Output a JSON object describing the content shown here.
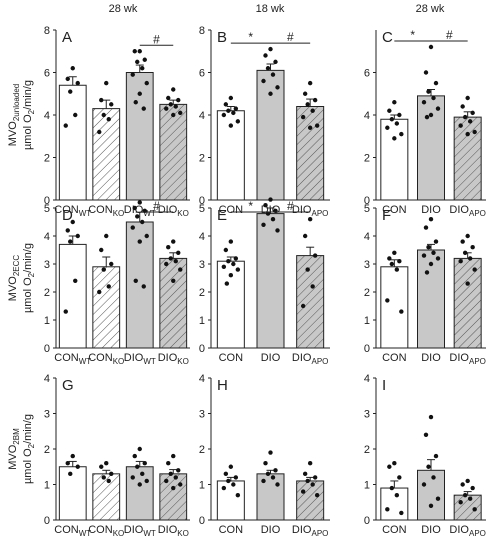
{
  "column_titles": [
    "28 wk",
    "18 wk",
    "28 wk"
  ],
  "chart_data": [
    {
      "type": "bar",
      "letter": "A",
      "categories": [
        "CON",
        "CON",
        "DIO",
        "DIO"
      ],
      "category_subscripts": [
        "WT",
        "KO",
        "WT",
        "KO"
      ],
      "ylabel": [
        {
          "text": "MVO"
        },
        {
          "text": "2unloaded",
          "sub": true
        }
      ],
      "yunit": [
        {
          "text": "µmol O"
        },
        {
          "text": "2",
          "sub": true
        },
        {
          "text": "/min/g"
        }
      ],
      "values": [
        5.4,
        4.3,
        6.0,
        4.5
      ],
      "errors": [
        0.4,
        0.4,
        0.35,
        0.2
      ],
      "colors": [
        "#ffffff",
        "#ffffff",
        "#c8c8c8",
        "#c8c8c8"
      ],
      "hatch": [
        false,
        true,
        false,
        true
      ],
      "points": [
        [
          6.2,
          5.7,
          5.5,
          5.1,
          4.0,
          3.5
        ],
        [
          5.5,
          4.7,
          4.5,
          4.0,
          3.8,
          3.2
        ],
        [
          7.0,
          7.0,
          6.6,
          6.5,
          6.2,
          5.9,
          5.5,
          5.0,
          4.6,
          4.3
        ],
        [
          5.2,
          4.8,
          4.7,
          4.5,
          4.4,
          4.3,
          4.1,
          4.0
        ]
      ],
      "ylim": [
        0,
        8
      ],
      "yticks": [
        0,
        2,
        4,
        6,
        8
      ],
      "annotations": [
        {
          "text": "#",
          "from": 2,
          "to": 3
        }
      ]
    },
    {
      "type": "bar",
      "letter": "B",
      "categories": [
        "CON",
        "DIO",
        "DIO"
      ],
      "category_subscripts": [
        null,
        null,
        "APO"
      ],
      "values": [
        4.2,
        6.1,
        4.4
      ],
      "errors": [
        0.2,
        0.3,
        0.35
      ],
      "colors": [
        "#ffffff",
        "#c8c8c8",
        "#c8c8c8"
      ],
      "hatch": [
        false,
        false,
        true
      ],
      "points": [
        [
          4.8,
          4.5,
          4.3,
          4.2,
          4.1,
          4.0,
          3.7,
          3.5
        ],
        [
          7.1,
          6.8,
          6.5,
          6.2,
          5.9,
          5.6,
          5.3,
          5.0
        ],
        [
          5.5,
          5.0,
          4.7,
          4.5,
          4.2,
          3.9,
          3.5,
          3.4
        ]
      ],
      "ylim": [
        0,
        8
      ],
      "yticks": [
        0,
        2,
        4,
        6,
        8
      ],
      "annotations": [
        {
          "text": "*",
          "from": 0,
          "to": 1
        },
        {
          "text": "#",
          "from": 1,
          "to": 2
        }
      ]
    },
    {
      "type": "bar",
      "letter": "C",
      "categories": [
        "CON",
        "DIO",
        "DIO"
      ],
      "category_subscripts": [
        null,
        null,
        "APO"
      ],
      "values": [
        3.8,
        4.9,
        3.9
      ],
      "errors": [
        0.2,
        0.3,
        0.25
      ],
      "colors": [
        "#ffffff",
        "#c8c8c8",
        "#c8c8c8"
      ],
      "hatch": [
        false,
        false,
        true
      ],
      "points": [
        [
          4.6,
          4.2,
          4.0,
          3.8,
          3.6,
          3.4,
          3.1,
          2.9
        ],
        [
          7.2,
          6.0,
          5.5,
          5.1,
          4.8,
          4.6,
          4.3,
          4.0,
          3.9
        ],
        [
          4.8,
          4.4,
          4.1,
          3.9,
          3.7,
          3.5,
          3.2,
          3.1
        ]
      ],
      "ylim": [
        0,
        8
      ],
      "yticks": [
        0,
        2,
        4,
        6
      ],
      "annotations": [
        {
          "text": "*",
          "from": 0,
          "to": 1
        },
        {
          "text": "#",
          "from": 1,
          "to": 2
        }
      ]
    },
    {
      "type": "bar",
      "letter": "D",
      "categories": [
        "CON",
        "CON",
        "DIO",
        "DIO"
      ],
      "category_subscripts": [
        "WT",
        "KO",
        "WT",
        "KO"
      ],
      "ylabel": [
        {
          "text": "MVO"
        },
        {
          "text": "2ECC",
          "sub": true
        }
      ],
      "yunit": [
        {
          "text": "µmol O"
        },
        {
          "text": "2",
          "sub": true
        },
        {
          "text": "/min/g"
        }
      ],
      "values": [
        3.7,
        2.9,
        4.5,
        3.2
      ],
      "errors": [
        0.3,
        0.35,
        0.35,
        0.2
      ],
      "colors": [
        "#ffffff",
        "#ffffff",
        "#c8c8c8",
        "#c8c8c8"
      ],
      "hatch": [
        false,
        true,
        false,
        true
      ],
      "points": [
        [
          4.5,
          4.2,
          4.0,
          3.8,
          2.4,
          1.3
        ],
        [
          4.0,
          3.5,
          3.0,
          2.8,
          2.2,
          2.0
        ],
        [
          5.2,
          5.0,
          4.9,
          4.7,
          4.5,
          4.3,
          4.0,
          3.8,
          2.4,
          2.2
        ],
        [
          3.8,
          3.6,
          3.4,
          3.2,
          3.1,
          3.0,
          2.8,
          2.4
        ]
      ],
      "ylim": [
        0,
        5
      ],
      "yticks": [
        0,
        1,
        2,
        3,
        4,
        5
      ],
      "annotations": [
        {
          "text": "#",
          "from": 2,
          "to": 3
        }
      ]
    },
    {
      "type": "bar",
      "letter": "E",
      "categories": [
        "CON",
        "DIO",
        "DIO"
      ],
      "category_subscripts": [
        null,
        null,
        "APO"
      ],
      "values": [
        3.1,
        4.8,
        3.3
      ],
      "errors": [
        0.15,
        0.2,
        0.3
      ],
      "colors": [
        "#ffffff",
        "#c8c8c8",
        "#c8c8c8"
      ],
      "hatch": [
        false,
        false,
        true
      ],
      "points": [
        [
          3.8,
          3.5,
          3.2,
          3.1,
          3.0,
          2.9,
          2.8,
          2.6,
          2.3
        ],
        [
          5.3,
          5.1,
          4.9,
          4.8,
          4.6,
          4.4,
          4.2
        ],
        [
          4.6,
          4.0,
          3.3,
          2.8,
          2.2,
          1.5
        ]
      ],
      "ylim": [
        0,
        5
      ],
      "yticks": [
        0,
        1,
        2,
        3,
        4,
        5
      ],
      "annotations": [
        {
          "text": "*",
          "from": 0,
          "to": 1
        },
        {
          "text": "#",
          "from": 1,
          "to": 2
        }
      ]
    },
    {
      "type": "bar",
      "letter": "F",
      "categories": [
        "CON",
        "DIO",
        "DIO"
      ],
      "category_subscripts": [
        null,
        null,
        "APO"
      ],
      "values": [
        2.9,
        3.5,
        3.2
      ],
      "errors": [
        0.25,
        0.2,
        0.2
      ],
      "colors": [
        "#ffffff",
        "#c8c8c8",
        "#c8c8c8"
      ],
      "hatch": [
        false,
        false,
        true
      ],
      "points": [
        [
          3.4,
          3.2,
          3.1,
          3.0,
          2.8,
          1.7,
          1.3
        ],
        [
          4.6,
          4.3,
          3.8,
          3.6,
          3.4,
          3.3,
          3.2,
          3.0,
          2.7
        ],
        [
          4.0,
          3.8,
          3.6,
          3.4,
          3.2,
          3.1,
          2.8,
          2.3
        ]
      ],
      "ylim": [
        0,
        5
      ],
      "yticks": [
        0,
        1,
        2,
        3,
        4,
        5
      ]
    },
    {
      "type": "bar",
      "letter": "G",
      "categories": [
        "CON",
        "CON",
        "DIO",
        "DIO"
      ],
      "category_subscripts": [
        "WT",
        "KO",
        "WT",
        "KO"
      ],
      "ylabel": [
        {
          "text": "MVO"
        },
        {
          "text": "2BM",
          "sub": true
        }
      ],
      "yunit": [
        {
          "text": "µmol O"
        },
        {
          "text": "2",
          "sub": true
        },
        {
          "text": "/min/g"
        }
      ],
      "values": [
        1.5,
        1.3,
        1.5,
        1.3
      ],
      "errors": [
        0.15,
        0.1,
        0.15,
        0.12
      ],
      "colors": [
        "#ffffff",
        "#ffffff",
        "#c8c8c8",
        "#c8c8c8"
      ],
      "hatch": [
        false,
        true,
        false,
        true
      ],
      "points": [
        [
          1.8,
          1.6,
          1.5,
          1.3
        ],
        [
          1.6,
          1.5,
          1.3,
          1.2,
          1.1
        ],
        [
          2.0,
          1.8,
          1.6,
          1.5,
          1.3,
          1.2,
          1.1,
          1.0
        ],
        [
          1.8,
          1.6,
          1.4,
          1.3,
          1.2,
          1.1,
          1.0,
          0.9
        ]
      ],
      "ylim": [
        0,
        4
      ],
      "yticks": [
        0,
        1,
        2,
        3,
        4
      ]
    },
    {
      "type": "bar",
      "letter": "H",
      "categories": [
        "CON",
        "DIO",
        "DIO"
      ],
      "category_subscripts": [
        null,
        null,
        "APO"
      ],
      "values": [
        1.1,
        1.3,
        1.1
      ],
      "errors": [
        0.1,
        0.1,
        0.1
      ],
      "colors": [
        "#ffffff",
        "#c8c8c8",
        "#c8c8c8"
      ],
      "hatch": [
        false,
        false,
        true
      ],
      "points": [
        [
          1.5,
          1.3,
          1.2,
          1.1,
          1.0,
          0.9,
          0.7
        ],
        [
          1.9,
          1.6,
          1.4,
          1.3,
          1.2,
          1.1,
          1.0
        ],
        [
          1.6,
          1.3,
          1.2,
          1.1,
          1.0,
          0.8,
          0.7
        ]
      ],
      "ylim": [
        0,
        4
      ],
      "yticks": [
        0,
        1,
        2,
        3,
        4
      ]
    },
    {
      "type": "bar",
      "letter": "I",
      "categories": [
        "CON",
        "DIO",
        "DIO"
      ],
      "category_subscripts": [
        null,
        null,
        "APO"
      ],
      "values": [
        0.9,
        1.4,
        0.7
      ],
      "errors": [
        0.2,
        0.3,
        0.1
      ],
      "colors": [
        "#ffffff",
        "#c8c8c8",
        "#c8c8c8"
      ],
      "hatch": [
        false,
        false,
        true
      ],
      "points": [
        [
          1.6,
          1.5,
          1.2,
          0.9,
          0.7,
          0.3,
          0.2
        ],
        [
          2.9,
          2.4,
          1.8,
          1.5,
          1.2,
          1.0,
          0.6,
          0.4
        ],
        [
          1.1,
          1.0,
          0.9,
          0.7,
          0.6,
          0.5,
          0.3
        ]
      ],
      "ylim": [
        0,
        4
      ],
      "yticks": [
        0,
        1,
        2,
        3,
        4
      ]
    }
  ]
}
